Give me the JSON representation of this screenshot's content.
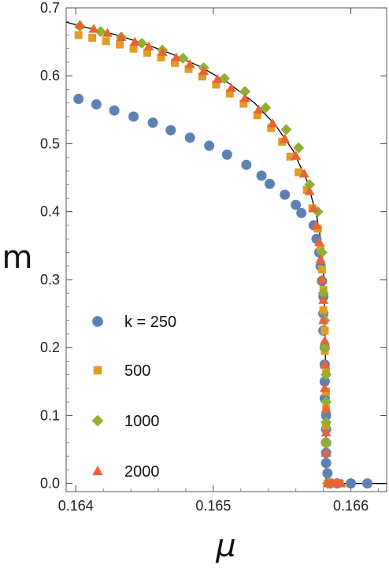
{
  "chart_data": {
    "type": "scatter",
    "title": "",
    "xlabel": "μ",
    "ylabel": "m",
    "xlim": [
      0.16393,
      0.16626
    ],
    "ylim": [
      -0.012,
      0.7
    ],
    "x_ticks": [
      0.164,
      0.165,
      0.166
    ],
    "x_tick_labels": [
      "0.164",
      "0.165",
      "0.166"
    ],
    "y_ticks": [
      0.0,
      0.1,
      0.2,
      0.3,
      0.4,
      0.5,
      0.6,
      0.7
    ],
    "y_tick_labels": [
      "0.0",
      "0.1",
      "0.2",
      "0.3",
      "0.4",
      "0.5",
      "0.6",
      "0.7"
    ],
    "grid": false,
    "legend_position": "lower-left",
    "series": [
      {
        "name": "k = 250",
        "marker": "circle",
        "color": "#5e81b5",
        "x": [
          0.16402,
          0.16415,
          0.16428,
          0.16442,
          0.16456,
          0.16469,
          0.16483,
          0.16497,
          0.1651,
          0.16524,
          0.16535,
          0.16541,
          0.16552,
          0.1656,
          0.16564,
          0.16573,
          0.16575,
          0.16577,
          0.16578,
          0.16579,
          0.1658,
          0.1658,
          0.1658,
          0.16581,
          0.16581,
          0.16581,
          0.16581,
          0.16582,
          0.16582,
          0.16582,
          0.16582,
          0.16582,
          0.16583,
          0.16585,
          0.1659,
          0.166,
          0.16612
        ],
        "y": [
          0.566,
          0.558,
          0.549,
          0.54,
          0.531,
          0.52,
          0.509,
          0.497,
          0.484,
          0.469,
          0.453,
          0.441,
          0.425,
          0.41,
          0.398,
          0.38,
          0.36,
          0.34,
          0.32,
          0.298,
          0.275,
          0.25,
          0.225,
          0.2,
          0.175,
          0.15,
          0.125,
          0.1,
          0.08,
          0.06,
          0.045,
          0.03,
          0.015,
          0.0,
          0.0,
          0.0,
          0.0
        ]
      },
      {
        "name": "500",
        "marker": "square",
        "color": "#e19c24",
        "x": [
          0.16402,
          0.16412,
          0.16422,
          0.16432,
          0.16442,
          0.16452,
          0.16462,
          0.16472,
          0.16482,
          0.16492,
          0.16502,
          0.16512,
          0.16522,
          0.16532,
          0.16542,
          0.1655,
          0.16556,
          0.16562,
          0.16568,
          0.16572,
          0.16576,
          0.16578,
          0.16579,
          0.1658,
          0.1658,
          0.16581,
          0.16581,
          0.16582,
          0.16582,
          0.16582,
          0.16582,
          0.16582,
          0.16583,
          0.16586,
          0.16592
        ],
        "y": [
          0.66,
          0.656,
          0.651,
          0.646,
          0.64,
          0.634,
          0.627,
          0.619,
          0.61,
          0.599,
          0.587,
          0.574,
          0.559,
          0.542,
          0.523,
          0.503,
          0.481,
          0.458,
          0.432,
          0.405,
          0.375,
          0.345,
          0.315,
          0.285,
          0.255,
          0.225,
          0.195,
          0.165,
          0.135,
          0.11,
          0.085,
          0.06,
          0.0,
          0.0,
          0.0
        ]
      },
      {
        "name": "1000",
        "marker": "diamond",
        "color": "#8fb032",
        "x": [
          0.16403,
          0.16418,
          0.16433,
          0.16448,
          0.16463,
          0.16478,
          0.16493,
          0.16508,
          0.16523,
          0.16538,
          0.16553,
          0.16562,
          0.1657,
          0.16576,
          0.16579,
          0.1658,
          0.16581,
          0.16581,
          0.16582,
          0.16582,
          0.16582,
          0.16582,
          0.16583,
          0.16584,
          0.16586
        ],
        "y": [
          0.673,
          0.665,
          0.657,
          0.648,
          0.638,
          0.626,
          0.612,
          0.596,
          0.577,
          0.553,
          0.521,
          0.494,
          0.44,
          0.4,
          0.34,
          0.28,
          0.24,
          0.2,
          0.16,
          0.12,
          0.09,
          0.06,
          0.0,
          0.0,
          0.0
        ]
      },
      {
        "name": "2000",
        "marker": "triangle",
        "color": "#eb6235",
        "x": [
          0.16403,
          0.16413,
          0.16423,
          0.16433,
          0.16443,
          0.16453,
          0.16463,
          0.16473,
          0.16483,
          0.16493,
          0.16503,
          0.16513,
          0.16523,
          0.16533,
          0.16543,
          0.16552,
          0.1656,
          0.16566,
          0.1657,
          0.16573,
          0.16575,
          0.16577,
          0.16578,
          0.16579,
          0.1658,
          0.1658,
          0.16581,
          0.16581,
          0.16581,
          0.16582,
          0.16582,
          0.16582,
          0.16583,
          0.16585,
          0.16587,
          0.16589,
          0.16591,
          0.16593
        ],
        "y": [
          0.675,
          0.669,
          0.663,
          0.657,
          0.65,
          0.643,
          0.635,
          0.627,
          0.617,
          0.607,
          0.595,
          0.582,
          0.567,
          0.55,
          0.53,
          0.507,
          0.482,
          0.456,
          0.43,
          0.405,
          0.38,
          0.355,
          0.33,
          0.3,
          0.27,
          0.24,
          0.21,
          0.175,
          0.14,
          0.11,
          0.075,
          0.045,
          0.0,
          0.0,
          0.0,
          0.0,
          0.0,
          0.0
        ]
      }
    ],
    "curve": {
      "style": "solid",
      "color": "#000000",
      "critical_mu": 0.16582,
      "x": [
        0.16393,
        0.1641,
        0.1643,
        0.1645,
        0.1647,
        0.1649,
        0.1651,
        0.1653,
        0.16545,
        0.16558,
        0.16568,
        0.16575,
        0.16578,
        0.1658,
        0.16581,
        0.16582,
        0.16582,
        0.16626
      ],
      "y": [
        0.679,
        0.67,
        0.66,
        0.647,
        0.632,
        0.614,
        0.591,
        0.56,
        0.528,
        0.49,
        0.446,
        0.395,
        0.36,
        0.32,
        0.25,
        0.12,
        0.0,
        0.0
      ]
    }
  }
}
